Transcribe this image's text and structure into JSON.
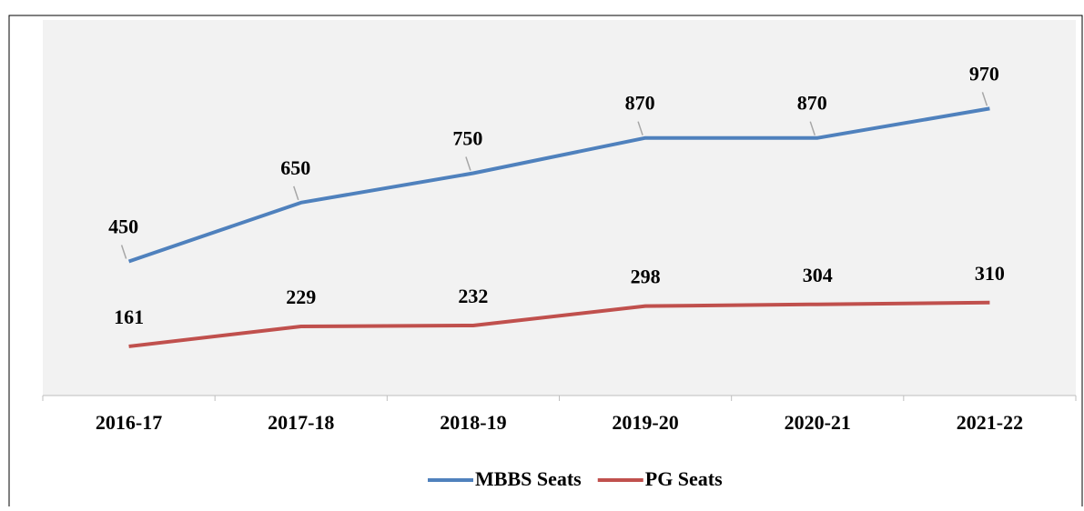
{
  "chart_data": {
    "type": "line",
    "categories": [
      "2016-17",
      "2017-18",
      "2018-19",
      "2019-20",
      "2020-21",
      "2021-22"
    ],
    "series": [
      {
        "name": "MBBS Seats",
        "color": "#4f81bd",
        "values": [
          450,
          650,
          750,
          870,
          870,
          970
        ]
      },
      {
        "name": "PG Seats",
        "color": "#c0504d",
        "values": [
          161,
          229,
          232,
          298,
          304,
          310
        ]
      }
    ],
    "ylim": [
      0,
      1200
    ],
    "legend": "bottom"
  }
}
